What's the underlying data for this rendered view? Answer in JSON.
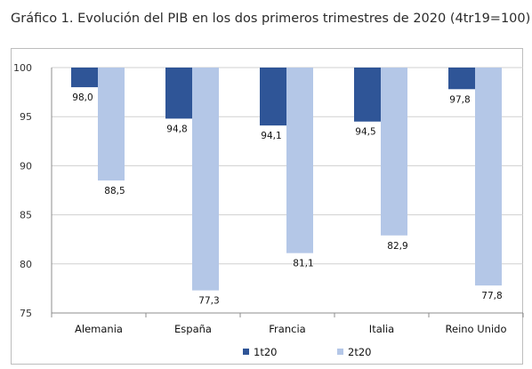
{
  "chart_data": {
    "type": "bar",
    "title": "Gráfico 1. Evolución del PIB en los dos primeros trimestres de 2020 (4tr19=100)",
    "categories": [
      "Alemania",
      "España",
      "Francia",
      "Italia",
      "Reino Unido"
    ],
    "series": [
      {
        "name": "1t20",
        "values": [
          98.0,
          94.8,
          94.1,
          94.5,
          97.8
        ],
        "labels": [
          "98,0",
          "94,8",
          "94,1",
          "94,5",
          "97,8"
        ],
        "color": "#2f5597"
      },
      {
        "name": "2t20",
        "values": [
          88.5,
          77.3,
          81.1,
          82.9,
          77.8
        ],
        "labels": [
          "88,5",
          "77,3",
          "81,1",
          "82,9",
          "77,8"
        ],
        "color": "#b4c7e7"
      }
    ],
    "y_ticks": [
      "100",
      "95",
      "90",
      "85",
      "80",
      "75"
    ],
    "ylim": [
      75,
      100
    ],
    "baseline": 100,
    "grid": true,
    "legend": "bottom-center",
    "xlabel": "",
    "ylabel": ""
  }
}
